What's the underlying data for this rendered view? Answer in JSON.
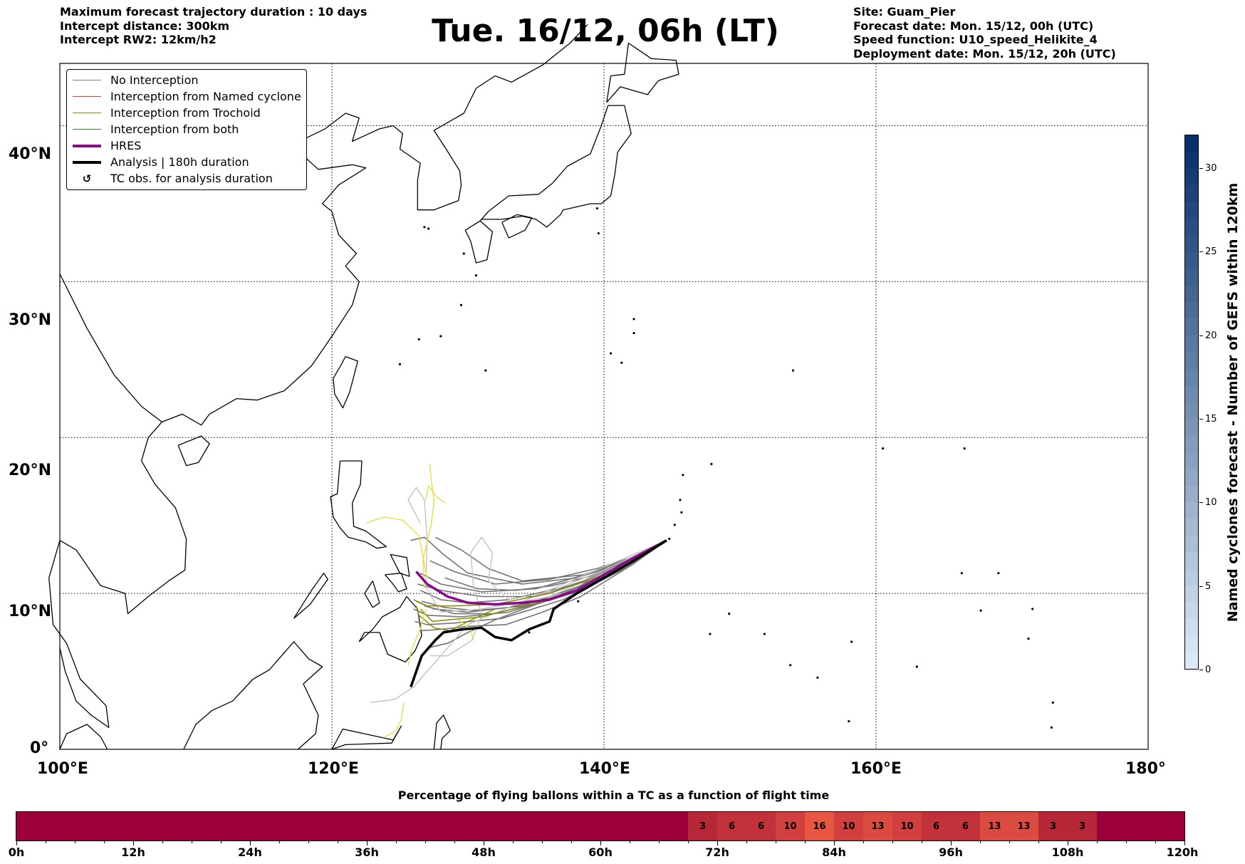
{
  "header": {
    "left_lines": [
      "Maximum forecast trajectory duration : 10 days",
      "Intercept distance: 300km",
      "Intercept RW2: 12km/h2"
    ],
    "title": "Tue. 16/12, 06h (LT)",
    "right_lines": [
      "Site: Guam_Pier",
      "Forecast date: Mon. 15/12, 00h (UTC)",
      "Speed function: U10_speed_Helikite_4",
      "Deployment date: Mon. 15/12, 20h (UTC)"
    ]
  },
  "map": {
    "lon_range": [
      100,
      180
    ],
    "lat_range": [
      0,
      44
    ],
    "lon_ticks": [
      "100°E",
      "120°E",
      "140°E",
      "160°E",
      "180°"
    ],
    "lat_ticks": [
      "0°",
      "10°N",
      "20°N",
      "30°N",
      "40°N"
    ],
    "grid": "dotted"
  },
  "legend": {
    "items": [
      {
        "label": "No Interception",
        "color": "#7f7f7f",
        "style": "thin-line"
      },
      {
        "label": "Interception from Named cyclone",
        "color": "#e8431e",
        "style": "thin-line"
      },
      {
        "label": "Interception from Trochoid",
        "color": "#8b8b00",
        "style": "thin-line"
      },
      {
        "label": "Interception from both",
        "color": "#2e8b2e",
        "style": "thin-line"
      },
      {
        "label": "HRES",
        "color": "#8b0a8b",
        "style": "thick-line"
      },
      {
        "label": "Analysis | 180h duration",
        "color": "#000000",
        "style": "thick-line"
      },
      {
        "label": "TC obs. for analysis duration",
        "color": "#000000",
        "style": "symbol"
      }
    ]
  },
  "tracks": {
    "start": {
      "lon": 144.6,
      "lat": 13.4
    },
    "hres": [
      [
        144.6,
        13.4
      ],
      [
        142,
        12.2
      ],
      [
        140,
        11.2
      ],
      [
        138,
        10.2
      ],
      [
        136,
        9.6
      ],
      [
        134,
        9.4
      ],
      [
        132,
        9.3
      ],
      [
        130,
        9.4
      ],
      [
        128.5,
        9.8
      ],
      [
        127,
        10.6
      ],
      [
        126.2,
        11.4
      ]
    ],
    "analysis": [
      [
        144.6,
        13.4
      ],
      [
        142,
        12
      ],
      [
        140,
        11
      ],
      [
        138,
        10
      ],
      [
        136.3,
        9
      ],
      [
        136,
        8.2
      ],
      [
        134.5,
        7.7
      ],
      [
        133.2,
        7
      ],
      [
        132,
        7.2
      ],
      [
        131,
        7.8
      ],
      [
        129.6,
        7.7
      ],
      [
        128.2,
        7.5
      ],
      [
        127.6,
        7
      ],
      [
        126.6,
        6
      ],
      [
        125.8,
        4
      ]
    ]
  },
  "colorbar": {
    "label": "Named cyclones forecast - Number of GEFS within 120km",
    "min": 0,
    "max": 32,
    "tick_values": [
      0,
      5,
      10,
      15,
      20,
      25,
      30
    ],
    "tick_labels": [
      "0",
      "5",
      "10",
      "15",
      "20",
      "25",
      "30"
    ],
    "color_low": "#dbe9f6",
    "color_high": "#08306b"
  },
  "timebar": {
    "title": "Percentage of flying ballons within a TC as a function of flight time",
    "hours_total": 120,
    "tick_labels": [
      "0h",
      "12h",
      "24h",
      "36h",
      "48h",
      "60h",
      "72h",
      "84h",
      "96h",
      "108h",
      "120h"
    ],
    "bin_hours": 3,
    "values": [
      0,
      0,
      0,
      0,
      0,
      0,
      0,
      0,
      0,
      0,
      0,
      0,
      0,
      0,
      0,
      0,
      0,
      0,
      0,
      0,
      0,
      0,
      0,
      3,
      6,
      6,
      10,
      16,
      10,
      13,
      10,
      6,
      6,
      13,
      13,
      3,
      3,
      0,
      0,
      0
    ],
    "base_color": "#9b003a"
  }
}
